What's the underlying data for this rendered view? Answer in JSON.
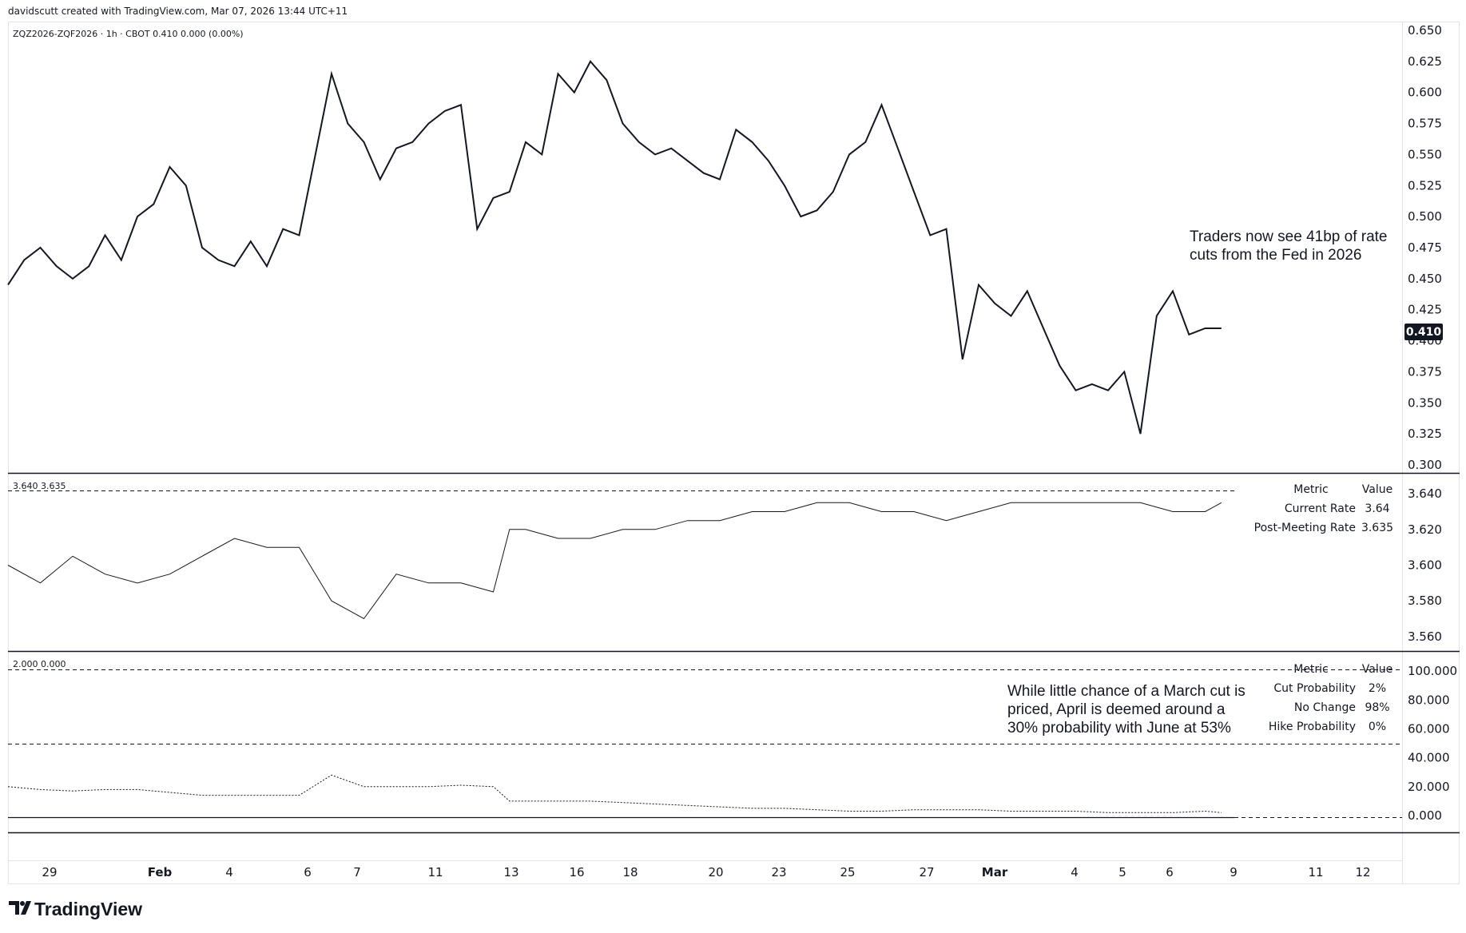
{
  "header": {
    "credit": "davidscutt created with TradingView.com, Mar 07, 2026 13:44 UTC+11",
    "symbol_line": "ZQZ2026-ZQF2026 · 1h · CBOT  0.410  0.000 (0.00%)"
  },
  "brand": {
    "name": "TradingView",
    "logo_icon": "tradingview-logo-icon"
  },
  "annotations": {
    "top_line1": "Traders now see 41bp of rate",
    "top_line2": "cuts from the Fed in 2026",
    "bottom_line1": "While little chance of a March cut is",
    "bottom_line2": "priced, April is deemed around a",
    "bottom_line3": "30% probability with June at 53%"
  },
  "pane2_header": "3.640  3.635",
  "pane3_header": "2.000  0.000",
  "legend_pane2": {
    "metric_header": "Metric",
    "value_header": "Value",
    "rows": [
      {
        "label": "Current Rate",
        "value": "3.64"
      },
      {
        "label": "Post-Meeting Rate",
        "value": "3.635"
      }
    ]
  },
  "legend_pane3": {
    "metric_header": "Metric",
    "value_header": "Value",
    "rows": [
      {
        "label": "Cut Probability",
        "value": "2%"
      },
      {
        "label": "No Change",
        "value": "98%"
      },
      {
        "label": "Hike Probability",
        "value": "0%"
      }
    ]
  },
  "x_axis_labels": [
    "29",
    "Feb",
    "4",
    "6",
    "7",
    "11",
    "13",
    "16",
    "18",
    "20",
    "23",
    "25",
    "27",
    "Mar",
    "4",
    "5",
    "6",
    "9",
    "11",
    "12"
  ],
  "colors": {
    "line": "#131722",
    "price_tag_bg": "#131722",
    "grid": "#131722"
  },
  "chart_data": [
    {
      "type": "line",
      "title": "ZQZ2026-ZQF2026",
      "last_value_label": "0.410",
      "ylim": [
        0.3,
        0.65
      ],
      "y_ticks": [
        "0.650",
        "0.625",
        "0.600",
        "0.575",
        "0.550",
        "0.525",
        "0.500",
        "0.475",
        "0.450",
        "0.425",
        "0.400",
        "0.375",
        "0.350",
        "0.325",
        "0.300"
      ],
      "series": [
        {
          "x": [
            0,
            0.5,
            1,
            1.5,
            2,
            2.5,
            3,
            3.5,
            4,
            4.5,
            5,
            5.5,
            6,
            6.5,
            7,
            7.5,
            8,
            8.5,
            9,
            9.5,
            10,
            10.5,
            11,
            11.5,
            12,
            12.5,
            13,
            13.5,
            14,
            14.5,
            15,
            15.5,
            16,
            16.5,
            17,
            17.5,
            18,
            18.5,
            19,
            19.5,
            20,
            20.5,
            21,
            21.5,
            22,
            22.5,
            23,
            23.5,
            24,
            24.5,
            25,
            25.5,
            26,
            26.5,
            27,
            27.5,
            28,
            28.5,
            29,
            29.5,
            30,
            30.5,
            31,
            31.5,
            32,
            32.5,
            33,
            33.5,
            34,
            34.5,
            35,
            35.5,
            36,
            36.5,
            37,
            37.5
          ],
          "values": [
            0.445,
            0.465,
            0.475,
            0.46,
            0.45,
            0.46,
            0.485,
            0.465,
            0.5,
            0.51,
            0.54,
            0.525,
            0.475,
            0.465,
            0.46,
            0.48,
            0.46,
            0.49,
            0.485,
            0.55,
            0.615,
            0.575,
            0.56,
            0.53,
            0.555,
            0.56,
            0.575,
            0.585,
            0.59,
            0.49,
            0.515,
            0.52,
            0.56,
            0.55,
            0.615,
            0.6,
            0.625,
            0.61,
            0.575,
            0.56,
            0.55,
            0.555,
            0.545,
            0.535,
            0.53,
            0.57,
            0.56,
            0.545,
            0.525,
            0.5,
            0.505,
            0.52,
            0.55,
            0.56,
            0.59,
            0.555,
            0.52,
            0.485,
            0.49,
            0.385,
            0.445,
            0.43,
            0.42,
            0.44,
            0.41,
            0.38,
            0.36,
            0.365,
            0.36,
            0.375,
            0.325,
            0.42,
            0.44,
            0.405,
            0.41,
            0.41
          ]
        }
      ]
    },
    {
      "type": "line",
      "title": "Current Rate / Post-Meeting Rate",
      "ylim": [
        3.555,
        3.645
      ],
      "y_ticks": [
        "3.640",
        "3.620",
        "3.600",
        "3.580",
        "3.560"
      ],
      "series": [
        {
          "name": "Post-Meeting Rate",
          "x": [
            0,
            1,
            2,
            3,
            4,
            5,
            6,
            7,
            8,
            9,
            10,
            11,
            12,
            13,
            14,
            15,
            15.5,
            16,
            17,
            18,
            19,
            20,
            21,
            22,
            23,
            24,
            25,
            26,
            27,
            28,
            29,
            30,
            31,
            32,
            33,
            34,
            35,
            36,
            37,
            37.5
          ],
          "values": [
            3.6,
            3.59,
            3.605,
            3.595,
            3.59,
            3.595,
            3.605,
            3.615,
            3.61,
            3.61,
            3.58,
            3.57,
            3.595,
            3.59,
            3.59,
            3.585,
            3.62,
            3.62,
            3.615,
            3.615,
            3.62,
            3.62,
            3.625,
            3.625,
            3.63,
            3.63,
            3.635,
            3.635,
            3.63,
            3.63,
            3.625,
            3.63,
            3.635,
            3.635,
            3.635,
            3.635,
            3.635,
            3.63,
            3.63,
            3.635
          ]
        }
      ]
    },
    {
      "type": "line",
      "title": "Cut Probability",
      "ylim": [
        -5,
        110
      ],
      "y_ticks": [
        "100.000",
        "80.000",
        "60.000",
        "40.000",
        "20.000",
        "0.000"
      ],
      "series": [
        {
          "name": "Cut Probability",
          "x": [
            0,
            1,
            2,
            3,
            4,
            5,
            6,
            7,
            8,
            9,
            10,
            11,
            12,
            13,
            14,
            15,
            15.5,
            16,
            17,
            18,
            19,
            20,
            21,
            22,
            23,
            24,
            25,
            26,
            27,
            28,
            29,
            30,
            31,
            32,
            33,
            34,
            35,
            36,
            37,
            37.5
          ],
          "values": [
            20,
            18,
            17,
            18,
            18,
            16,
            14,
            14,
            14,
            14,
            28,
            20,
            20,
            20,
            21,
            20,
            10,
            10,
            10,
            10,
            9,
            8,
            7,
            6,
            5,
            5,
            4,
            3,
            3,
            4,
            4,
            4,
            3,
            3,
            3,
            2,
            2,
            2,
            3,
            2
          ]
        }
      ]
    }
  ]
}
